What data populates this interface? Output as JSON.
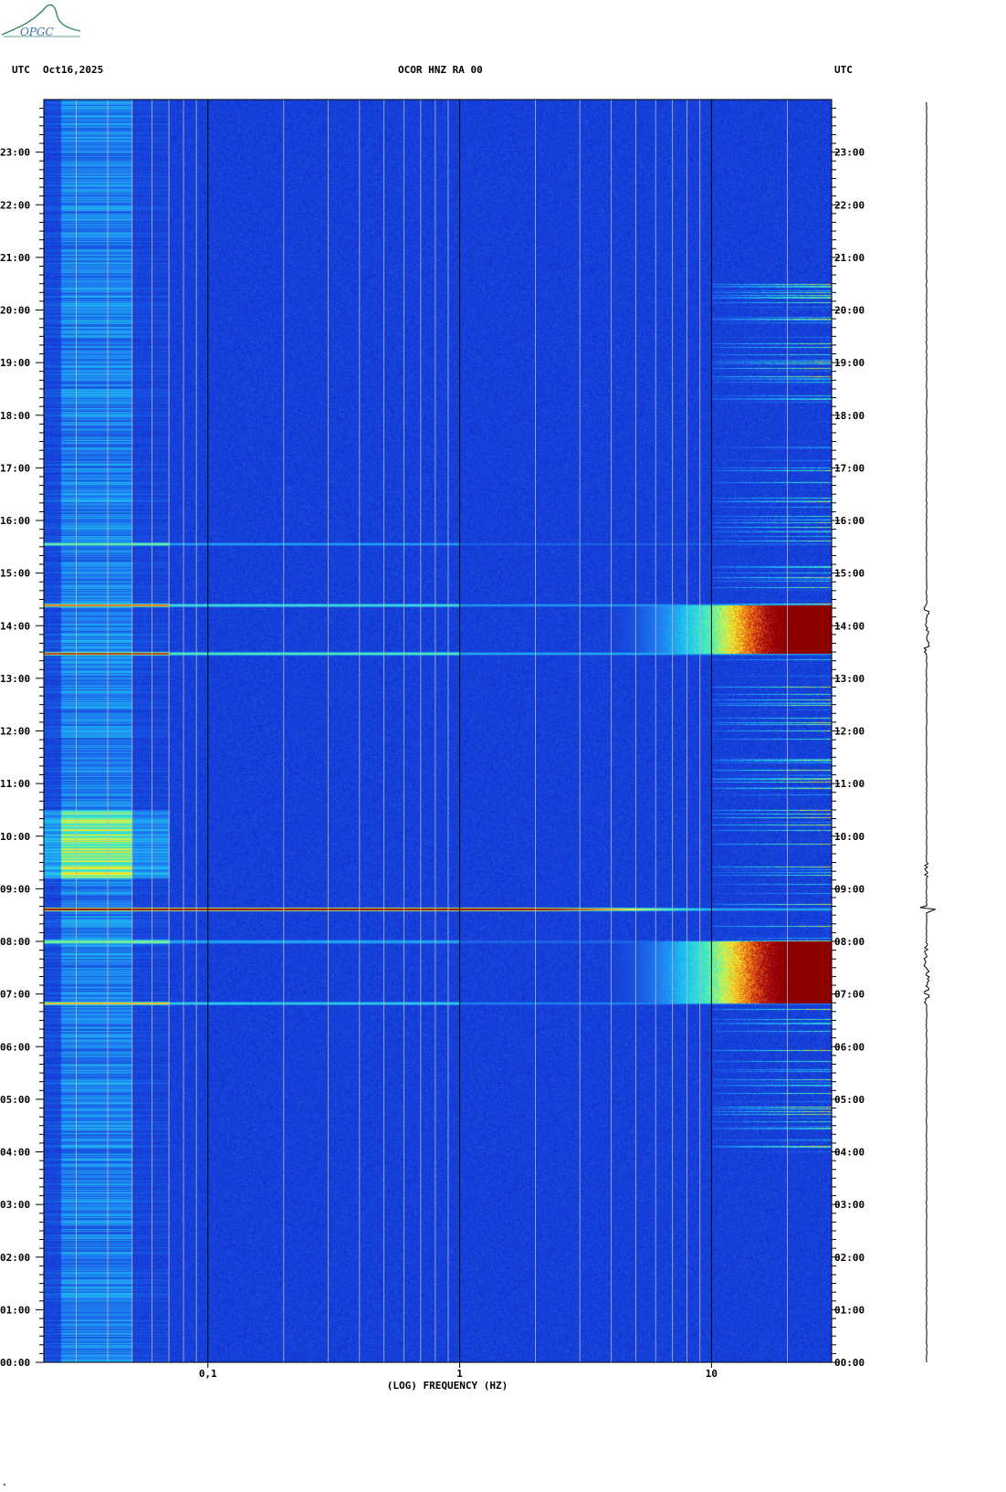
{
  "header": {
    "left_tz": "UTC",
    "date": "Oct16,2025",
    "station": "OCOR HNZ RA 00",
    "right_tz": "UTC"
  },
  "logo": {
    "text": "OPGC",
    "accent": "#2e8b57"
  },
  "chart_data": {
    "type": "heatmap",
    "title": "OCOR HNZ RA 00",
    "xlabel": "(LOG) FREQUENCY (HZ)",
    "x_scale": "log",
    "xlim": [
      0.0223,
      30
    ],
    "x_ticks": [
      {
        "value": 0.1,
        "label": "0,1"
      },
      {
        "value": 1,
        "label": "1"
      },
      {
        "value": 10,
        "label": "10"
      }
    ],
    "y_unit": "hours UTC",
    "ylim": [
      0,
      24
    ],
    "y_ticks": [
      {
        "hour": 0,
        "label": "00:00"
      },
      {
        "hour": 1,
        "label": "01:00"
      },
      {
        "hour": 2,
        "label": "02:00"
      },
      {
        "hour": 3,
        "label": "03:00"
      },
      {
        "hour": 4,
        "label": "04:00"
      },
      {
        "hour": 5,
        "label": "05:00"
      },
      {
        "hour": 6,
        "label": "06:00"
      },
      {
        "hour": 7,
        "label": "07:00"
      },
      {
        "hour": 8,
        "label": "08:00"
      },
      {
        "hour": 9,
        "label": "09:00"
      },
      {
        "hour": 10,
        "label": "10:00"
      },
      {
        "hour": 11,
        "label": "11:00"
      },
      {
        "hour": 12,
        "label": "12:00"
      },
      {
        "hour": 13,
        "label": "13:00"
      },
      {
        "hour": 14,
        "label": "14:00"
      },
      {
        "hour": 15,
        "label": "15:00"
      },
      {
        "hour": 16,
        "label": "16:00"
      },
      {
        "hour": 17,
        "label": "17:00"
      },
      {
        "hour": 18,
        "label": "18:00"
      },
      {
        "hour": 19,
        "label": "19:00"
      },
      {
        "hour": 20,
        "label": "20:00"
      },
      {
        "hour": 21,
        "label": "21:00"
      },
      {
        "hour": 22,
        "label": "22:00"
      },
      {
        "hour": 23,
        "label": "23:00"
      }
    ],
    "colormap": [
      "#0a0a8c",
      "#1432d2",
      "#1e78f0",
      "#1ec8f0",
      "#50f0b4",
      "#f0f032",
      "#f07814",
      "#b41414",
      "#8c0000"
    ],
    "background_level": 0.12,
    "energy_bursts": [
      {
        "t_start": 6.82,
        "t_end": 8.0,
        "f_start": 3.0,
        "f_peak": 20,
        "level": 1.0
      },
      {
        "t_start": 13.48,
        "t_end": 14.4,
        "f_start": 3.0,
        "f_peak": 20,
        "level": 1.0
      }
    ],
    "broadband_lines": [
      {
        "t": 8.62,
        "level": 0.95
      },
      {
        "t": 6.82,
        "level": 0.45
      },
      {
        "t": 8.0,
        "level": 0.35
      },
      {
        "t": 13.48,
        "level": 0.55
      },
      {
        "t": 14.4,
        "level": 0.5
      },
      {
        "t": 15.55,
        "level": 0.35
      }
    ],
    "low_frequency_band": {
      "f_start": 0.0223,
      "f_end": 0.07,
      "t_start": 0,
      "t_end": 24,
      "level": 0.35,
      "peak_t_start": 9.2,
      "peak_t_end": 10.5,
      "peak_level": 0.6
    },
    "sporadic_high_frequency": {
      "f_start": 10,
      "f_end": 30,
      "t_start": 3.8,
      "t_end": 20.5,
      "level": 0.45
    }
  }
}
